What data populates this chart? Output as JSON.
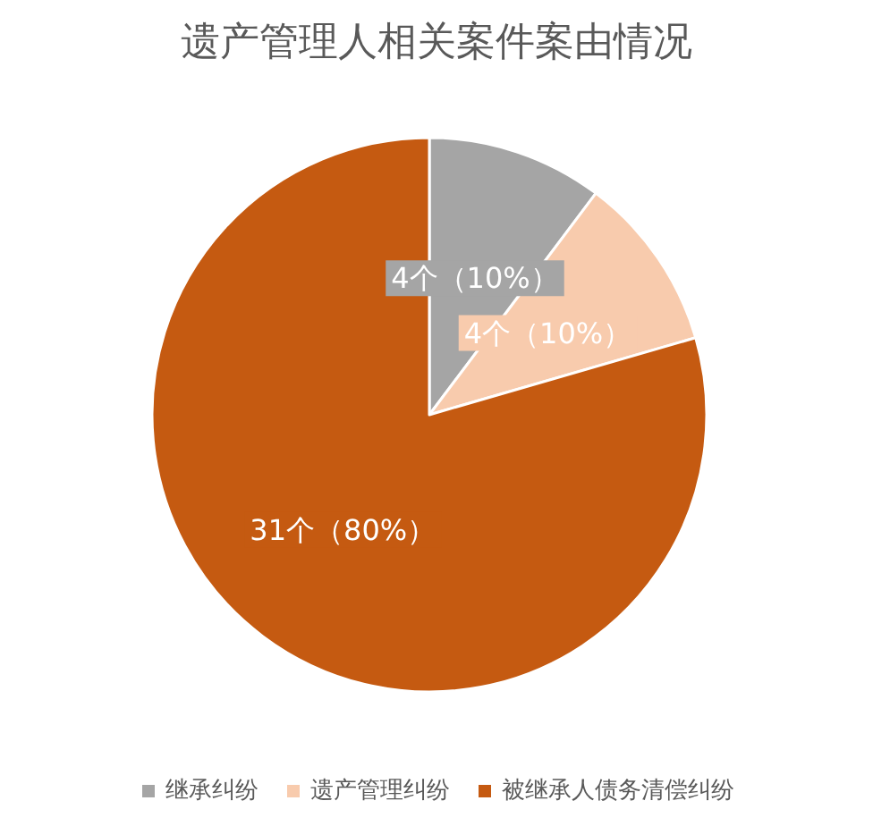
{
  "chart_data": {
    "type": "pie",
    "title": "遗产管理人相关案件案由情况",
    "categories": [
      "继承纠纷",
      "遗产管理纠纷",
      "被继承人债务清偿纠纷"
    ],
    "values": [
      4,
      4,
      31
    ],
    "colors": [
      "#a5a5a5",
      "#f8cbad",
      "#c55a11"
    ],
    "value_labels": [
      "4个（10%）",
      "4个（10%）",
      "31个（80%）"
    ],
    "legend": "bottom"
  }
}
